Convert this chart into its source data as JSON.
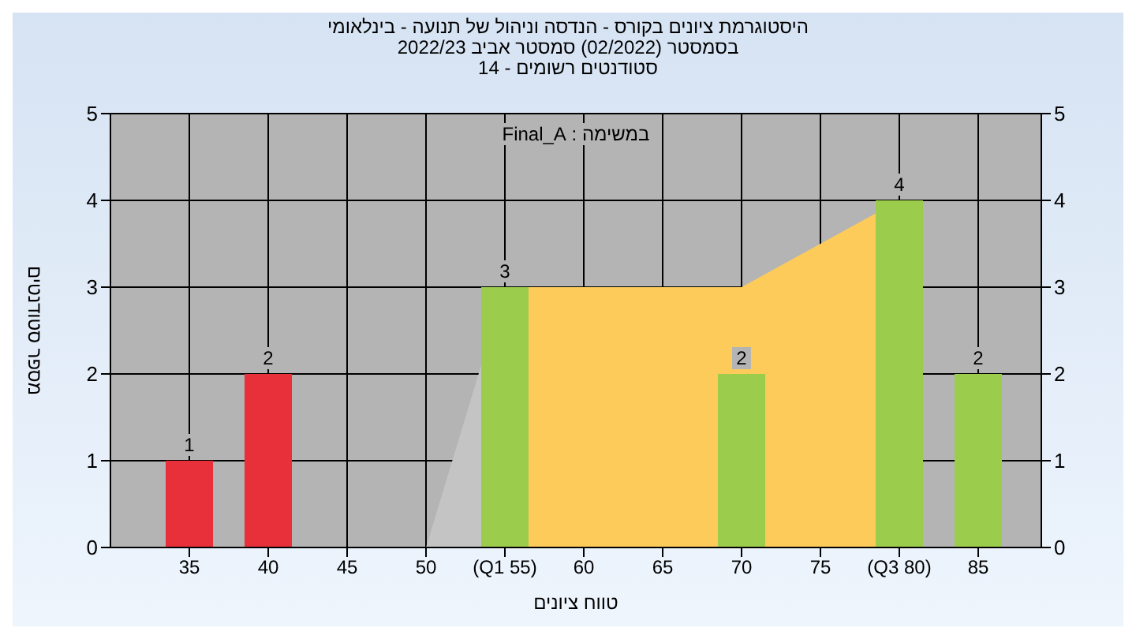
{
  "chart_data": {
    "type": "bar",
    "title": "היסטוגרמת ציונים בקורס - הנדסה וניהול של תנועה - בינלאומי\nבסמסטר  (02/2022)  סמסטר אביב 2022/23\nסטודנטים רשומים - 14",
    "xlabel": "טווח ציונים",
    "ylabel": "מספר סטודנטים",
    "annotations": [
      "במשימה : Final_A"
    ],
    "categories": [
      "35",
      "40",
      "45",
      "50",
      "(Q1 55)",
      "60",
      "65",
      "70",
      "75",
      "(Q3 80)",
      "85"
    ],
    "series": [
      {
        "type": "area",
        "color": "#c4c4c4",
        "values": [
          null,
          null,
          null,
          0,
          3,
          null,
          null,
          null,
          null,
          null,
          null
        ]
      },
      {
        "type": "area",
        "color": "#fdcb5a",
        "values": [
          null,
          null,
          null,
          null,
          3,
          3,
          3,
          3,
          3.5,
          4,
          null
        ]
      },
      {
        "color": "#9ccc4c",
        "colors": [
          "#e8303a",
          "#e8303a",
          "#9ccc4c",
          "#9ccc4c",
          "#9ccc4c",
          "#9ccc4c",
          "#9ccc4c",
          "#9ccc4c",
          "#9ccc4c",
          "#9ccc4c",
          "#9ccc4c"
        ],
        "values": [
          1,
          2,
          null,
          null,
          3,
          null,
          null,
          2,
          null,
          4,
          2
        ],
        "value_labels": [
          "1",
          "2",
          null,
          null,
          "3",
          null,
          null,
          "2",
          null,
          "4",
          "2"
        ]
      }
    ],
    "ylim": [
      0,
      5
    ],
    "yticks": [
      0,
      1,
      2,
      3,
      4,
      5
    ],
    "y2lim": [
      0,
      5
    ],
    "y2ticks": [
      0,
      1,
      2,
      3,
      4,
      5
    ],
    "grid": true,
    "legend": false
  }
}
